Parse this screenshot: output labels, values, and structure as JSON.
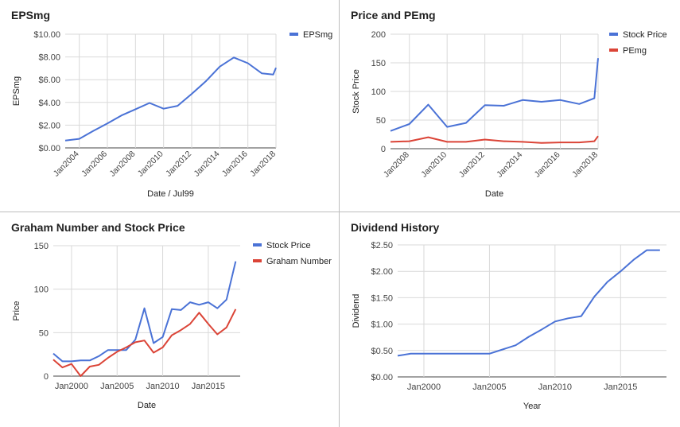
{
  "chart_data": [
    {
      "id": "eps",
      "type": "line",
      "title": "EPSmg",
      "xlabel": "Date / Jul99",
      "ylabel": "EPSmg",
      "xlim": [
        2003.0,
        2018.0
      ],
      "ylim": [
        0,
        10
      ],
      "yticks": [
        0,
        2,
        4,
        6,
        8,
        10
      ],
      "ytick_labels": [
        "$0.00",
        "$2.00",
        "$4.00",
        "$6.00",
        "$8.00",
        "$10.00"
      ],
      "xticks": [
        2004,
        2006,
        2008,
        2010,
        2012,
        2014,
        2016,
        2018
      ],
      "xtick_labels": [
        "Jan2004",
        "Jan2006",
        "Jan2008",
        "Jan2010",
        "Jan2012",
        "Jan2014",
        "Jan2016",
        "Jan2018"
      ],
      "xtick_rotated": true,
      "grid": true,
      "legend": "top-right",
      "series": [
        {
          "name": "EPSmg",
          "color": "#4a72d6",
          "x": [
            2003.0,
            2004.0,
            2005.0,
            2006.0,
            2007.0,
            2008.0,
            2009.0,
            2010.0,
            2011.0,
            2012.0,
            2013.0,
            2014.0,
            2015.0,
            2016.0,
            2017.0,
            2017.8,
            2018.0
          ],
          "y": [
            0.65,
            0.8,
            1.5,
            2.15,
            2.85,
            3.4,
            3.95,
            3.45,
            3.7,
            4.75,
            5.85,
            7.15,
            7.95,
            7.45,
            6.55,
            6.45,
            7.05
          ]
        }
      ]
    },
    {
      "id": "pe",
      "type": "line",
      "title": "Price and PEmg",
      "xlabel": "Date",
      "ylabel": "Stock Price",
      "xlim": [
        2007.0,
        2018.0
      ],
      "ylim": [
        0,
        200
      ],
      "yticks": [
        0,
        50,
        100,
        150,
        200
      ],
      "ytick_labels": [
        "0",
        "50",
        "100",
        "150",
        "200"
      ],
      "xticks": [
        2008,
        2010,
        2012,
        2014,
        2016,
        2018
      ],
      "xtick_labels": [
        "Jan2008",
        "Jan2010",
        "Jan2012",
        "Jan2014",
        "Jan2016",
        "Jan2018"
      ],
      "xtick_rotated": true,
      "grid": true,
      "legend": "top-right",
      "series": [
        {
          "name": "Stock Price",
          "color": "#4a72d6",
          "x": [
            2007.0,
            2008.0,
            2009.0,
            2010.0,
            2011.0,
            2012.0,
            2013.0,
            2014.0,
            2015.0,
            2016.0,
            2017.0,
            2017.8,
            2018.0
          ],
          "y": [
            31,
            43,
            77,
            38,
            45,
            76,
            75,
            85,
            82,
            85,
            78,
            88,
            158
          ]
        },
        {
          "name": "PEmg",
          "color": "#db4437",
          "x": [
            2007.0,
            2008.0,
            2009.0,
            2010.0,
            2011.0,
            2012.0,
            2013.0,
            2014.0,
            2015.0,
            2016.0,
            2017.0,
            2017.8,
            2018.0
          ],
          "y": [
            12,
            13,
            20,
            12,
            12,
            16,
            13,
            12,
            10,
            11,
            11,
            13,
            22
          ]
        }
      ]
    },
    {
      "id": "graham",
      "type": "line",
      "title": "Graham Number and Stock Price",
      "xlabel": "Date",
      "ylabel": "Price",
      "xlim": [
        1998.0,
        2018.5
      ],
      "ylim": [
        0,
        150
      ],
      "yticks": [
        0,
        50,
        100,
        150
      ],
      "ytick_labels": [
        "0",
        "50",
        "100",
        "150"
      ],
      "xticks": [
        2000,
        2005,
        2010,
        2015
      ],
      "xtick_labels": [
        "Jan2000",
        "Jan2005",
        "Jan2010",
        "Jan2015"
      ],
      "xtick_rotated": false,
      "grid": true,
      "legend": "top-right",
      "series": [
        {
          "name": "Stock Price",
          "color": "#4a72d6",
          "x": [
            1998,
            1999,
            2000,
            2001,
            2002,
            2003,
            2004,
            2005,
            2006,
            2007,
            2008,
            2009,
            2010,
            2011,
            2012,
            2013,
            2014,
            2015,
            2016,
            2017,
            2018
          ],
          "y": [
            26,
            17,
            17,
            18,
            18,
            23,
            30,
            30,
            30,
            42,
            78,
            38,
            45,
            77,
            76,
            85,
            82,
            85,
            78,
            88,
            132
          ]
        },
        {
          "name": "Graham Number",
          "color": "#db4437",
          "x": [
            1998,
            1999,
            2000,
            2001,
            2002,
            2003,
            2004,
            2005,
            2006,
            2007,
            2008,
            2009,
            2010,
            2011,
            2012,
            2013,
            2014,
            2015,
            2016,
            2017,
            2018
          ],
          "y": [
            19,
            10,
            14,
            0,
            11,
            13,
            21,
            28,
            33,
            39,
            41,
            27,
            33,
            47,
            53,
            60,
            73,
            60,
            48,
            56,
            77
          ]
        }
      ]
    },
    {
      "id": "dividend",
      "type": "line",
      "title": "Dividend History",
      "xlabel": "Year",
      "ylabel": "Dividend",
      "xlim": [
        1998.0,
        2018.5
      ],
      "ylim": [
        0,
        2.5
      ],
      "yticks": [
        0,
        0.5,
        1.0,
        1.5,
        2.0,
        2.5
      ],
      "ytick_labels": [
        "$0.00",
        "$0.50",
        "$1.00",
        "$1.50",
        "$2.00",
        "$2.50"
      ],
      "xticks": [
        2000,
        2005,
        2010,
        2015
      ],
      "xtick_labels": [
        "Jan2000",
        "Jan2005",
        "Jan2010",
        "Jan2015"
      ],
      "xtick_rotated": false,
      "grid": true,
      "legend": "none",
      "series": [
        {
          "name": "",
          "color": "#4a72d6",
          "x": [
            1998,
            1999,
            2000,
            2001,
            2002,
            2003,
            2004,
            2005,
            2006,
            2007,
            2008,
            2009,
            2010,
            2011,
            2012,
            2013,
            2014,
            2015,
            2016,
            2017,
            2018
          ],
          "y": [
            0.4,
            0.44,
            0.44,
            0.44,
            0.44,
            0.44,
            0.44,
            0.44,
            0.52,
            0.6,
            0.76,
            0.9,
            1.05,
            1.11,
            1.15,
            1.52,
            1.8,
            2.0,
            2.22,
            2.4,
            2.4
          ]
        }
      ]
    }
  ]
}
